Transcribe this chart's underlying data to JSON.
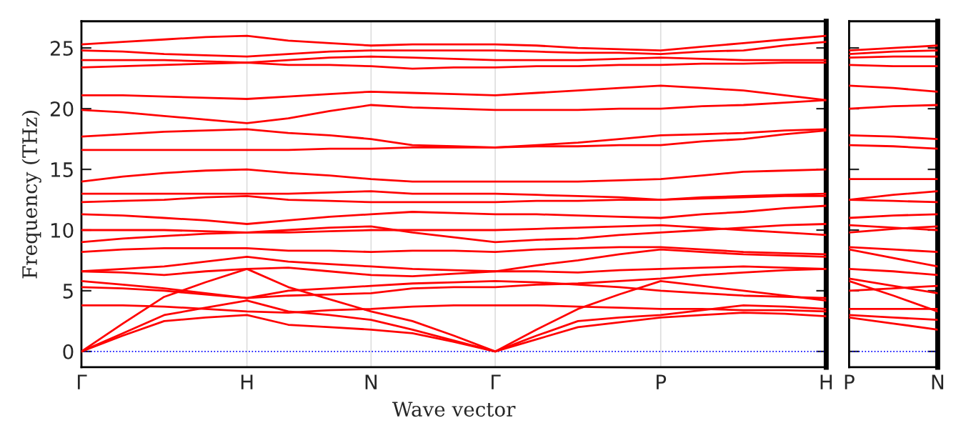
{
  "chart_data": [
    {
      "type": "line",
      "xlabel": "Wave vector",
      "ylabel": "Frequency (THz)",
      "ylim": [
        -1.3,
        27.2
      ],
      "categories": [
        "Γ",
        null,
        null,
        null,
        "H",
        null,
        null,
        "N",
        null,
        null,
        "Γ",
        null,
        null,
        null,
        "P",
        null,
        null,
        null,
        "H"
      ],
      "yticks": [
        0,
        5,
        10,
        15,
        20,
        25
      ],
      "grid": "x",
      "line_style": "solid",
      "marker": "none",
      "ref_lines": [
        {
          "axis": "y",
          "value": 0,
          "color": "#0000ff",
          "line_style": "dotted"
        }
      ],
      "series": [
        {
          "color": "#ff0000",
          "values": [
            0,
            1.3,
            2.5,
            2.8,
            3.0,
            2.2,
            2.0,
            1.8,
            1.5,
            0.8,
            0,
            1.0,
            2.0,
            2.4,
            2.8,
            3.0,
            3.2,
            3.1,
            2.9
          ]
        },
        {
          "color": "#ff0000",
          "values": [
            0,
            1.5,
            3.0,
            3.6,
            4.2,
            3.3,
            3.0,
            2.6,
            1.8,
            0.9,
            0,
            1.3,
            2.5,
            2.8,
            3.0,
            3.4,
            3.8,
            3.7,
            3.5
          ]
        },
        {
          "color": "#ff0000",
          "values": [
            0,
            2.3,
            4.5,
            5.7,
            6.8,
            5.3,
            4.3,
            3.3,
            2.5,
            1.3,
            0,
            1.8,
            3.5,
            4.7,
            5.8,
            5.4,
            5.0,
            4.6,
            4.2
          ]
        },
        {
          "color": "#ff0000",
          "values": [
            3.8,
            3.8,
            3.7,
            3.5,
            3.3,
            3.2,
            3.4,
            3.5,
            3.7,
            3.8,
            3.8,
            3.8,
            3.7,
            3.6,
            3.5,
            3.5,
            3.4,
            3.4,
            3.3
          ]
        },
        {
          "color": "#ff0000",
          "values": [
            5.3,
            5.2,
            5.0,
            4.7,
            4.4,
            4.6,
            4.7,
            4.8,
            5.2,
            5.3,
            5.3,
            5.5,
            5.6,
            5.8,
            6.0,
            6.3,
            6.5,
            6.7,
            6.8
          ]
        },
        {
          "color": "#ff0000",
          "values": [
            5.8,
            5.5,
            5.2,
            4.8,
            4.4,
            5.0,
            5.2,
            5.4,
            5.6,
            5.7,
            5.8,
            5.7,
            5.5,
            5.3,
            5.0,
            4.8,
            4.6,
            4.5,
            4.4
          ]
        },
        {
          "color": "#ff0000",
          "values": [
            6.6,
            6.5,
            6.3,
            6.6,
            6.8,
            6.9,
            6.6,
            6.3,
            6.2,
            6.4,
            6.6,
            6.6,
            6.5,
            6.7,
            6.8,
            6.9,
            7.0,
            6.9,
            6.8
          ]
        },
        {
          "color": "#ff0000",
          "values": [
            6.6,
            6.8,
            7.0,
            7.4,
            7.8,
            7.4,
            7.2,
            7.0,
            6.8,
            6.7,
            6.6,
            7.1,
            7.5,
            8.0,
            8.4,
            8.2,
            8.0,
            7.9,
            7.8
          ]
        },
        {
          "color": "#ff0000",
          "values": [
            8.2,
            8.4,
            8.5,
            8.5,
            8.5,
            8.3,
            8.3,
            8.2,
            8.3,
            8.3,
            8.2,
            8.4,
            8.5,
            8.6,
            8.6,
            8.4,
            8.2,
            8.1,
            8.0
          ]
        },
        {
          "color": "#ff0000",
          "values": [
            9.0,
            9.3,
            9.5,
            9.7,
            9.8,
            10.0,
            10.2,
            10.3,
            9.8,
            9.4,
            9.0,
            9.2,
            9.3,
            9.6,
            9.8,
            10.0,
            10.2,
            10.4,
            10.5
          ]
        },
        {
          "color": "#ff0000",
          "values": [
            10.0,
            10.0,
            10.0,
            9.9,
            9.8,
            9.8,
            9.9,
            10.0,
            10.0,
            10.0,
            10.0,
            10.1,
            10.2,
            10.3,
            10.4,
            10.2,
            10.0,
            9.8,
            9.6
          ]
        },
        {
          "color": "#ff0000",
          "values": [
            11.3,
            11.2,
            11.0,
            10.8,
            10.5,
            10.8,
            11.1,
            11.3,
            11.5,
            11.4,
            11.3,
            11.3,
            11.2,
            11.1,
            11.0,
            11.3,
            11.5,
            11.8,
            12.0
          ]
        },
        {
          "color": "#ff0000",
          "values": [
            12.3,
            12.4,
            12.5,
            12.7,
            12.8,
            12.5,
            12.4,
            12.3,
            12.3,
            12.3,
            12.3,
            12.4,
            12.4,
            12.5,
            12.5,
            12.6,
            12.7,
            12.8,
            12.8
          ]
        },
        {
          "color": "#ff0000",
          "values": [
            13.0,
            13.0,
            13.0,
            13.0,
            13.0,
            13.0,
            13.1,
            13.2,
            13.0,
            13.0,
            13.0,
            12.9,
            12.8,
            12.7,
            12.5,
            12.7,
            12.8,
            12.9,
            13.0
          ]
        },
        {
          "color": "#ff0000",
          "values": [
            14.0,
            14.4,
            14.7,
            14.9,
            15.0,
            14.7,
            14.5,
            14.2,
            14.0,
            14.0,
            14.0,
            14.0,
            14.0,
            14.1,
            14.2,
            14.5,
            14.8,
            14.9,
            15.0
          ]
        },
        {
          "color": "#ff0000",
          "values": [
            16.6,
            16.6,
            16.6,
            16.6,
            16.6,
            16.6,
            16.7,
            16.7,
            16.8,
            16.8,
            16.8,
            16.9,
            16.9,
            17.0,
            17.0,
            17.3,
            17.5,
            17.9,
            18.2
          ]
        },
        {
          "color": "#ff0000",
          "values": [
            17.7,
            17.9,
            18.1,
            18.2,
            18.3,
            18.0,
            17.8,
            17.5,
            17.0,
            16.9,
            16.8,
            17.0,
            17.2,
            17.5,
            17.8,
            17.9,
            18.0,
            18.2,
            18.3
          ]
        },
        {
          "color": "#ff0000",
          "values": [
            19.9,
            19.7,
            19.4,
            19.1,
            18.8,
            19.2,
            19.8,
            20.3,
            20.1,
            20.0,
            19.9,
            19.9,
            19.9,
            20.0,
            20.0,
            20.2,
            20.3,
            20.5,
            20.7
          ]
        },
        {
          "color": "#ff0000",
          "values": [
            21.1,
            21.1,
            21.0,
            20.9,
            20.8,
            21.0,
            21.2,
            21.4,
            21.3,
            21.2,
            21.1,
            21.3,
            21.5,
            21.7,
            21.9,
            21.7,
            21.5,
            21.1,
            20.7
          ]
        },
        {
          "color": "#ff0000",
          "values": [
            23.4,
            23.5,
            23.6,
            23.7,
            23.8,
            23.6,
            23.6,
            23.5,
            23.3,
            23.4,
            23.4,
            23.5,
            23.5,
            23.6,
            23.6,
            23.7,
            23.7,
            23.8,
            23.8
          ]
        },
        {
          "color": "#ff0000",
          "values": [
            24.0,
            24.0,
            24.0,
            23.9,
            23.8,
            24.0,
            24.2,
            24.3,
            24.2,
            24.1,
            24.0,
            24.0,
            24.0,
            24.1,
            24.2,
            24.1,
            24.0,
            24.0,
            24.0
          ]
        },
        {
          "color": "#ff0000",
          "values": [
            24.8,
            24.7,
            24.5,
            24.4,
            24.3,
            24.5,
            24.7,
            24.8,
            24.8,
            24.8,
            24.8,
            24.7,
            24.6,
            24.6,
            24.5,
            24.7,
            24.8,
            25.2,
            25.5
          ]
        },
        {
          "color": "#ff0000",
          "values": [
            25.3,
            25.5,
            25.7,
            25.9,
            26.0,
            25.6,
            25.4,
            25.2,
            25.3,
            25.3,
            25.3,
            25.2,
            25.0,
            24.9,
            24.8,
            25.1,
            25.4,
            25.7,
            26.0
          ]
        }
      ]
    },
    {
      "type": "line",
      "ylim": [
        -1.3,
        27.2
      ],
      "categories": [
        "P",
        null,
        "N"
      ],
      "yticks": [
        {
          "value": 0,
          "label": null
        },
        {
          "value": 5,
          "label": null
        },
        {
          "value": 10,
          "label": null
        },
        {
          "value": 15,
          "label": null
        },
        {
          "value": 20,
          "label": null
        },
        {
          "value": 25,
          "label": null
        }
      ],
      "tick_labels": "x",
      "line_style": "solid",
      "marker": "none",
      "ref_lines": [
        {
          "axis": "y",
          "value": 0,
          "color": "#0000ff",
          "line_style": "dotted"
        }
      ],
      "series": [
        {
          "color": "#ff0000",
          "values": [
            2.8,
            2.3,
            1.8
          ]
        },
        {
          "color": "#ff0000",
          "values": [
            3.0,
            2.8,
            2.6
          ]
        },
        {
          "color": "#ff0000",
          "values": [
            5.8,
            4.6,
            3.3
          ]
        },
        {
          "color": "#ff0000",
          "values": [
            3.5,
            3.5,
            3.5
          ]
        },
        {
          "color": "#ff0000",
          "values": [
            6.0,
            5.4,
            4.8
          ]
        },
        {
          "color": "#ff0000",
          "values": [
            5.0,
            5.2,
            5.4
          ]
        },
        {
          "color": "#ff0000",
          "values": [
            6.8,
            6.6,
            6.3
          ]
        },
        {
          "color": "#ff0000",
          "values": [
            8.4,
            7.7,
            7.0
          ]
        },
        {
          "color": "#ff0000",
          "values": [
            8.6,
            8.4,
            8.2
          ]
        },
        {
          "color": "#ff0000",
          "values": [
            9.8,
            10.1,
            10.3
          ]
        },
        {
          "color": "#ff0000",
          "values": [
            10.4,
            10.2,
            10.0
          ]
        },
        {
          "color": "#ff0000",
          "values": [
            11.0,
            11.2,
            11.3
          ]
        },
        {
          "color": "#ff0000",
          "values": [
            12.5,
            12.4,
            12.3
          ]
        },
        {
          "color": "#ff0000",
          "values": [
            12.5,
            12.9,
            13.2
          ]
        },
        {
          "color": "#ff0000",
          "values": [
            14.2,
            14.2,
            14.2
          ]
        },
        {
          "color": "#ff0000",
          "values": [
            17.0,
            16.9,
            16.7
          ]
        },
        {
          "color": "#ff0000",
          "values": [
            17.8,
            17.7,
            17.5
          ]
        },
        {
          "color": "#ff0000",
          "values": [
            20.0,
            20.2,
            20.3
          ]
        },
        {
          "color": "#ff0000",
          "values": [
            21.9,
            21.7,
            21.4
          ]
        },
        {
          "color": "#ff0000",
          "values": [
            23.6,
            23.5,
            23.5
          ]
        },
        {
          "color": "#ff0000",
          "values": [
            24.2,
            24.3,
            24.3
          ]
        },
        {
          "color": "#ff0000",
          "values": [
            24.5,
            24.7,
            24.8
          ]
        },
        {
          "color": "#ff0000",
          "values": [
            24.8,
            25.0,
            25.2
          ]
        }
      ]
    }
  ]
}
